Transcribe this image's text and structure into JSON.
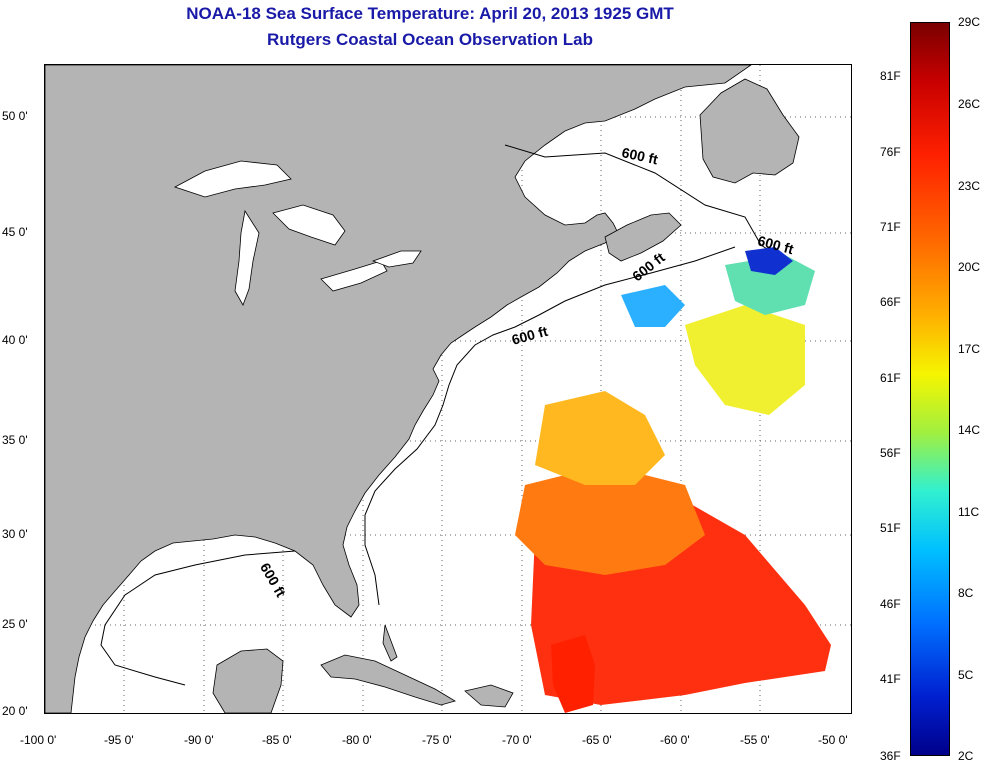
{
  "title": {
    "line1": "NOAA-18 Sea Surface Temperature:  April 20, 2013 1925 GMT",
    "line2": "Rutgers Coastal Ocean Observation Lab"
  },
  "map": {
    "lat_ticks": [
      "50 0'",
      "45 0'",
      "40 0'",
      "35 0'",
      "30 0'",
      "25 0'",
      "20 0'"
    ],
    "lon_ticks": [
      "-100 0'",
      "-95 0'",
      "-90 0'",
      "-85 0'",
      "-80 0'",
      "-75 0'",
      "-70 0'",
      "-65 0'",
      "-60 0'",
      "-55 0'",
      "-50 0'"
    ],
    "contour_label": "600 ft",
    "colors": {
      "land": "#b4b4b4",
      "ocean": "#ffffff",
      "title": "#1a1aa8"
    }
  },
  "colorbar": {
    "celsius": [
      "29C",
      "26C",
      "23C",
      "20C",
      "17C",
      "14C",
      "11C",
      "8C",
      "5C",
      "2C"
    ],
    "fahrenheit": [
      "81F",
      "76F",
      "71F",
      "66F",
      "61F",
      "56F",
      "51F",
      "46F",
      "41F",
      "36F"
    ]
  }
}
